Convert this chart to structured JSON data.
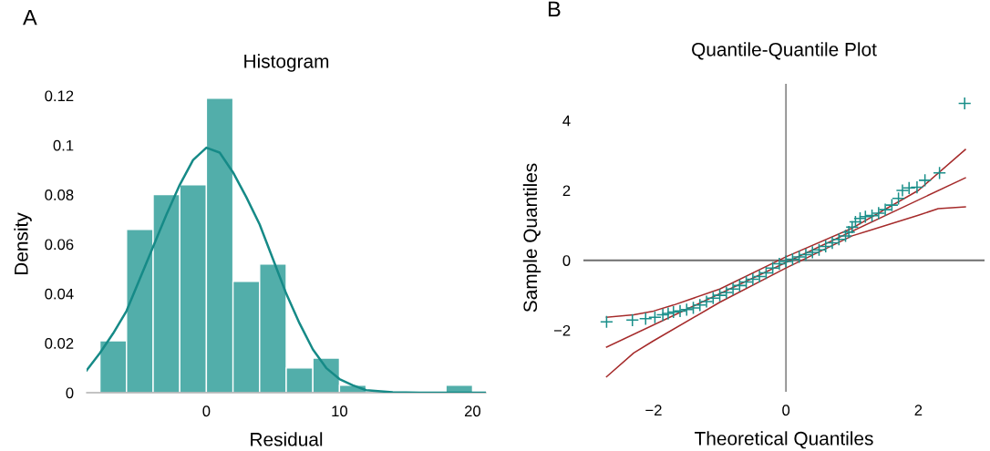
{
  "chart_data": [
    {
      "type": "histogram",
      "title": "Histogram",
      "xlabel": "Residual",
      "ylabel": "Density",
      "annotations": [
        "A"
      ],
      "bins": [
        -8,
        -6,
        -4,
        -2,
        0,
        2,
        4,
        6,
        8,
        10,
        12,
        14,
        16,
        18,
        20
      ],
      "values": [
        0.021,
        0.066,
        0.08,
        0.084,
        0.119,
        0.045,
        0.052,
        0.01,
        0.014,
        0.003,
        0,
        0,
        0,
        0.003
      ],
      "color": "#52aeaa",
      "series": [
        {
          "type": "line",
          "color": "#168a87",
          "x": [
            -9,
            -8,
            -7,
            -6,
            -5,
            -4,
            -3,
            -2,
            -1,
            0,
            1,
            2,
            3,
            4,
            5,
            6,
            7,
            8,
            9,
            10,
            11,
            12,
            14,
            16,
            21
          ],
          "values": [
            0.009,
            0.016,
            0.024,
            0.033,
            0.046,
            0.059,
            0.072,
            0.084,
            0.094,
            0.099,
            0.097,
            0.089,
            0.079,
            0.068,
            0.054,
            0.04,
            0.028,
            0.0175,
            0.01,
            0.0055,
            0.003,
            0.001,
            0.0002,
            0,
            0
          ]
        }
      ],
      "xlim": [
        -9,
        21
      ],
      "xticks": [
        0,
        10,
        20
      ],
      "ylim": [
        0,
        0.12
      ],
      "yticks": [
        0,
        0.02,
        0.04,
        0.06,
        0.08,
        0.1,
        0.12
      ],
      "grid": false,
      "legend": false
    },
    {
      "type": "scatter",
      "title": "Quantile-Quantile Plot",
      "xlabel": "Theoretical Quantiles",
      "ylabel": "Sample Quantiles",
      "annotations": [
        "B"
      ],
      "series": [
        {
          "type": "scatter",
          "color": "#1a8f8a",
          "marker": "cross",
          "x": [
            -2.71,
            -2.32,
            -2.12,
            -1.98,
            -1.86,
            -1.78,
            -1.7,
            -1.6,
            -1.5,
            -1.4,
            -1.3,
            -1.2,
            -1.1,
            -1.0,
            -0.9,
            -0.8,
            -0.7,
            -0.6,
            -0.5,
            -0.4,
            -0.3,
            -0.2,
            -0.1,
            0,
            0.1,
            0.2,
            0.3,
            0.4,
            0.5,
            0.6,
            0.7,
            0.8,
            0.9,
            0.95,
            1.0,
            1.05,
            1.12,
            1.2,
            1.3,
            1.4,
            1.5,
            1.6,
            1.7,
            1.76,
            1.86,
            1.98,
            2.1,
            2.32,
            2.7
          ],
          "values": [
            -1.76,
            -1.71,
            -1.67,
            -1.63,
            -1.56,
            -1.52,
            -1.48,
            -1.45,
            -1.41,
            -1.36,
            -1.28,
            -1.18,
            -1.08,
            -1.0,
            -0.92,
            -0.82,
            -0.72,
            -0.62,
            -0.54,
            -0.46,
            -0.36,
            -0.22,
            -0.1,
            -0.03,
            0.03,
            0.1,
            0.16,
            0.23,
            0.3,
            0.4,
            0.5,
            0.6,
            0.7,
            0.81,
            0.95,
            1.1,
            1.2,
            1.25,
            1.28,
            1.35,
            1.45,
            1.58,
            1.77,
            2.0,
            2.07,
            2.09,
            2.29,
            2.5,
            4.49
          ]
        },
        {
          "type": "line",
          "color": "#a52a2a",
          "x": [
            -2.71,
            2.71
          ],
          "values": [
            -2.48,
            2.36
          ]
        },
        {
          "type": "line",
          "color": "#a52a2a",
          "x": [
            -2.71,
            -2.3,
            -2.0,
            -1.7,
            -1.0,
            0,
            1,
            2,
            2.71
          ],
          "values": [
            -1.63,
            -1.56,
            -1.45,
            -1.28,
            -0.82,
            0.1,
            0.92,
            2.0,
            3.17
          ]
        },
        {
          "type": "line",
          "color": "#a52a2a",
          "x": [
            -2.71,
            -2.3,
            -2.0,
            -1.0,
            0,
            1,
            2,
            2.3,
            2.71
          ],
          "values": [
            -3.33,
            -2.65,
            -2.3,
            -1.2,
            -0.22,
            0.7,
            1.29,
            1.48,
            1.53
          ]
        }
      ],
      "ref_lines": [
        {
          "axis": "x",
          "value": 0,
          "color": "#8c8c8c"
        },
        {
          "axis": "y",
          "value": 0,
          "color": "#6e6e6e"
        }
      ],
      "xlim": [
        -3.06,
        3.0
      ],
      "xticks": [
        {
          "value": -2,
          "label": "−2"
        },
        0,
        2
      ],
      "ylim": [
        -3.76,
        5.05
      ],
      "yticks": [
        {
          "value": -2,
          "label": "−2"
        },
        0,
        2,
        4
      ],
      "grid": false,
      "legend": false
    }
  ]
}
